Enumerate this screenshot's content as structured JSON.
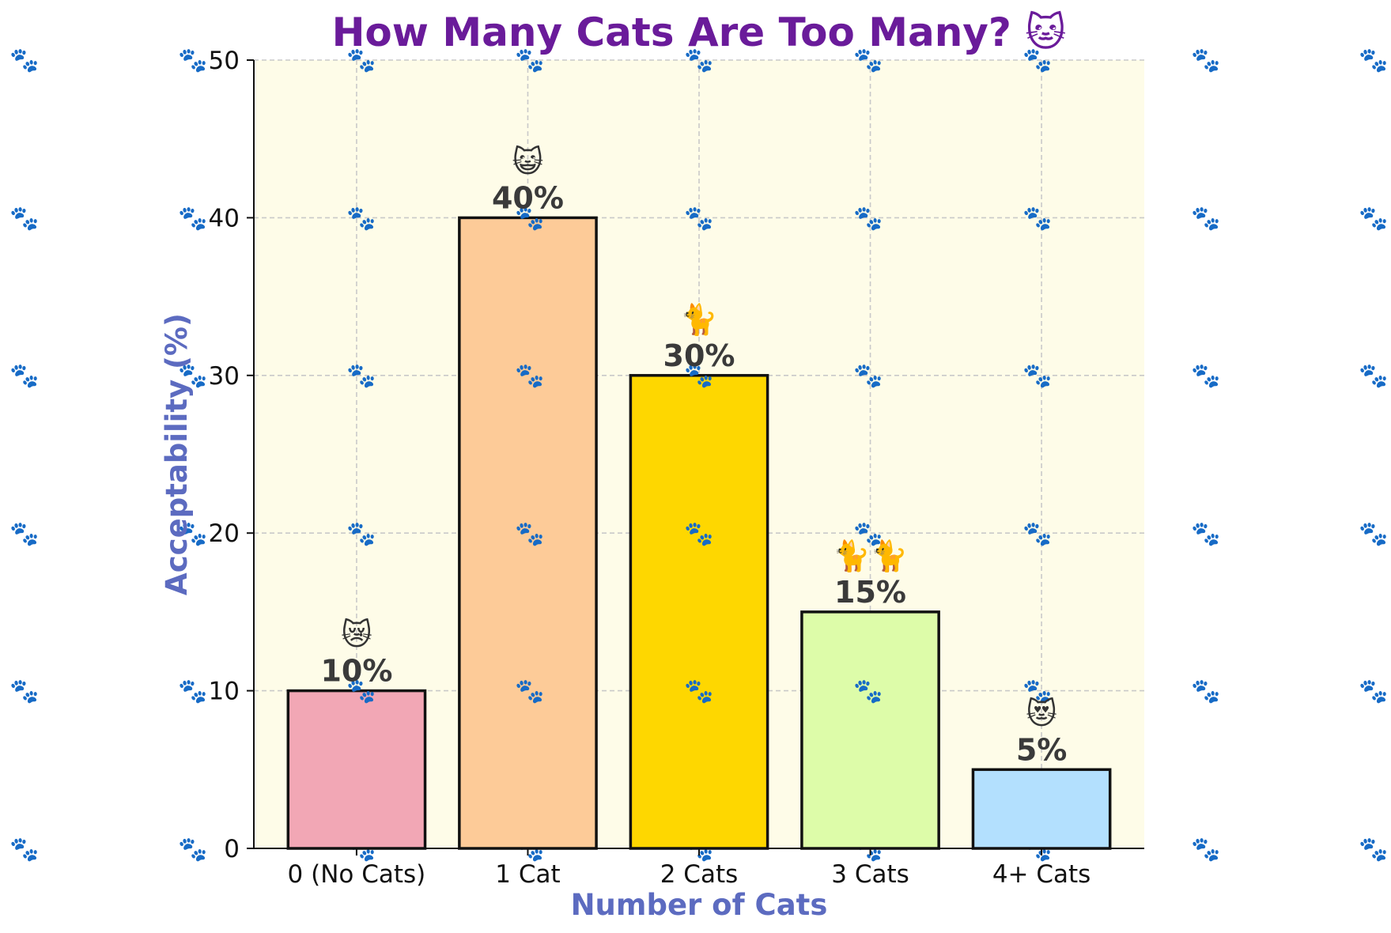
{
  "chart_data": {
    "type": "bar",
    "title": "How Many Cats Are Too Many? 🐱",
    "xlabel": "Number of Cats",
    "ylabel": "Acceptability (%)",
    "categories": [
      "0 (No Cats)",
      "1 Cat",
      "2 Cats",
      "3 Cats",
      "4+ Cats"
    ],
    "values": [
      10,
      40,
      30,
      15,
      5
    ],
    "value_labels": [
      "10%",
      "40%",
      "30%",
      "15%",
      "5%"
    ],
    "bar_emojis": [
      "😿",
      "😺",
      "🐈",
      "🐈🐈",
      "😻"
    ],
    "bar_colors": [
      "#f2a7b5",
      "#fdcb98",
      "#fed700",
      "#ddfca9",
      "#b3e0fe"
    ],
    "ylim": [
      0,
      50
    ],
    "yticks": [
      0,
      10,
      20,
      30,
      40,
      50
    ],
    "grid": true,
    "legend": "none",
    "background_glyph": "🐾"
  },
  "colors": {
    "title": "#6a1b9a",
    "axis_title": "#5c6bc0",
    "plot_background": "#fefce8",
    "grid": "#c9c9c9",
    "bar_edge": "#111111"
  }
}
